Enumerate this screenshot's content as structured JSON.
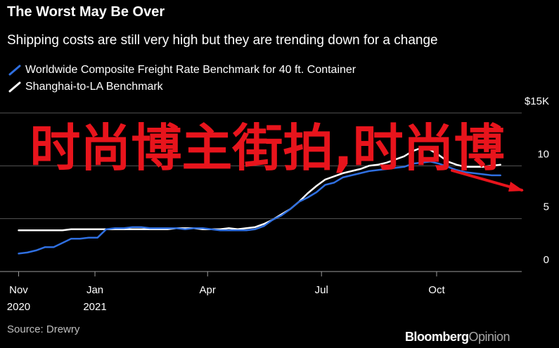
{
  "header": {
    "title": "The Worst May Be Over",
    "subtitle": "Shipping costs are still very high but they are trending down for a change"
  },
  "legend": [
    {
      "label": "Worldwide Composite Freight Rate Benchmark for 40 ft. Container",
      "color": "#2f6fe0"
    },
    {
      "label": "Shanghai-to-LA Benchmark",
      "color": "#ffffff"
    }
  ],
  "footer": {
    "source": "Source: Drewry",
    "brand_primary": "Bloomberg",
    "brand_secondary": "Opinion"
  },
  "overlay": {
    "text": "时尚博主街拍,时尚博"
  },
  "colors": {
    "background": "#000000",
    "grid": "#555555",
    "overlay_text": "#e8141c",
    "arrow": "#e8141c"
  },
  "chart_data": {
    "type": "line",
    "title": "The Worst May Be Over",
    "subtitle": "Shipping costs are still very high but they are trending down for a change",
    "y_unit_label": "$15K",
    "ylim": [
      0,
      15
    ],
    "yticks": [
      {
        "value": 15,
        "label": "$15K"
      },
      {
        "value": 10,
        "label": "10"
      },
      {
        "value": 5,
        "label": "5"
      },
      {
        "value": 0,
        "label": "0"
      }
    ],
    "xlim": [
      "2020-10-25",
      "2021-12-08"
    ],
    "xticks": [
      {
        "date": "2020-11-01",
        "label": [
          "Nov",
          "2020"
        ]
      },
      {
        "date": "2021-01-01",
        "label": [
          "Jan",
          "2021"
        ]
      },
      {
        "date": "2021-04-01",
        "label": [
          "Apr",
          ""
        ]
      },
      {
        "date": "2021-07-01",
        "label": [
          "Jul",
          ""
        ]
      },
      {
        "date": "2021-10-01",
        "label": [
          "Oct",
          ""
        ]
      }
    ],
    "grid": "horizontal",
    "legend_position": "top-left",
    "series": [
      {
        "name": "Worldwide Composite Freight Rate Benchmark for 40 ft. Container",
        "color": "#2f6fe0",
        "points": [
          [
            "2020-11-01",
            1.7
          ],
          [
            "2020-11-08",
            1.8
          ],
          [
            "2020-11-15",
            2.0
          ],
          [
            "2020-11-22",
            2.3
          ],
          [
            "2020-11-29",
            2.3
          ],
          [
            "2020-12-06",
            2.7
          ],
          [
            "2020-12-13",
            3.1
          ],
          [
            "2020-12-20",
            3.1
          ],
          [
            "2020-12-27",
            3.2
          ],
          [
            "2021-01-03",
            3.2
          ],
          [
            "2021-01-10",
            4.0
          ],
          [
            "2021-01-17",
            4.1
          ],
          [
            "2021-01-24",
            4.1
          ],
          [
            "2021-01-31",
            4.2
          ],
          [
            "2021-02-07",
            4.2
          ],
          [
            "2021-02-14",
            4.1
          ],
          [
            "2021-02-21",
            4.1
          ],
          [
            "2021-02-28",
            4.1
          ],
          [
            "2021-03-07",
            4.1
          ],
          [
            "2021-03-14",
            4.0
          ],
          [
            "2021-03-21",
            4.1
          ],
          [
            "2021-03-28",
            4.1
          ],
          [
            "2021-04-04",
            4.0
          ],
          [
            "2021-04-11",
            3.9
          ],
          [
            "2021-04-18",
            3.9
          ],
          [
            "2021-04-25",
            3.9
          ],
          [
            "2021-05-02",
            3.9
          ],
          [
            "2021-05-09",
            4.0
          ],
          [
            "2021-05-16",
            4.3
          ],
          [
            "2021-05-23",
            4.9
          ],
          [
            "2021-05-30",
            5.3
          ],
          [
            "2021-06-06",
            5.9
          ],
          [
            "2021-06-13",
            6.6
          ],
          [
            "2021-06-20",
            7.0
          ],
          [
            "2021-06-27",
            7.5
          ],
          [
            "2021-07-04",
            8.2
          ],
          [
            "2021-07-11",
            8.4
          ],
          [
            "2021-07-18",
            8.9
          ],
          [
            "2021-07-25",
            9.1
          ],
          [
            "2021-08-01",
            9.3
          ],
          [
            "2021-08-08",
            9.5
          ],
          [
            "2021-08-15",
            9.6
          ],
          [
            "2021-08-22",
            9.7
          ],
          [
            "2021-08-29",
            9.8
          ],
          [
            "2021-09-05",
            9.9
          ],
          [
            "2021-09-12",
            10.2
          ],
          [
            "2021-09-19",
            10.3
          ],
          [
            "2021-09-26",
            10.4
          ],
          [
            "2021-10-03",
            10.2
          ],
          [
            "2021-10-10",
            9.9
          ],
          [
            "2021-10-17",
            9.6
          ],
          [
            "2021-10-24",
            9.4
          ],
          [
            "2021-10-31",
            9.3
          ],
          [
            "2021-11-07",
            9.2
          ],
          [
            "2021-11-14",
            9.1
          ],
          [
            "2021-11-21",
            9.1
          ]
        ]
      },
      {
        "name": "Shanghai-to-LA Benchmark",
        "color": "#ffffff",
        "points": [
          [
            "2020-11-01",
            3.9
          ],
          [
            "2020-11-08",
            3.9
          ],
          [
            "2020-11-15",
            3.9
          ],
          [
            "2020-11-22",
            3.9
          ],
          [
            "2020-11-29",
            3.9
          ],
          [
            "2020-12-06",
            3.9
          ],
          [
            "2020-12-13",
            4.0
          ],
          [
            "2020-12-20",
            4.0
          ],
          [
            "2020-12-27",
            4.0
          ],
          [
            "2021-01-03",
            4.0
          ],
          [
            "2021-01-10",
            4.0
          ],
          [
            "2021-01-17",
            4.0
          ],
          [
            "2021-01-24",
            4.0
          ],
          [
            "2021-01-31",
            4.0
          ],
          [
            "2021-02-07",
            4.0
          ],
          [
            "2021-02-14",
            4.0
          ],
          [
            "2021-02-21",
            4.0
          ],
          [
            "2021-02-28",
            4.0
          ],
          [
            "2021-03-07",
            4.1
          ],
          [
            "2021-03-14",
            4.1
          ],
          [
            "2021-03-21",
            4.1
          ],
          [
            "2021-03-28",
            4.0
          ],
          [
            "2021-04-04",
            4.0
          ],
          [
            "2021-04-11",
            4.0
          ],
          [
            "2021-04-18",
            4.1
          ],
          [
            "2021-04-25",
            4.0
          ],
          [
            "2021-05-02",
            4.1
          ],
          [
            "2021-05-09",
            4.2
          ],
          [
            "2021-05-16",
            4.5
          ],
          [
            "2021-05-23",
            4.9
          ],
          [
            "2021-05-30",
            5.4
          ],
          [
            "2021-06-06",
            5.9
          ],
          [
            "2021-06-13",
            6.6
          ],
          [
            "2021-06-20",
            7.4
          ],
          [
            "2021-06-27",
            8.1
          ],
          [
            "2021-07-04",
            8.7
          ],
          [
            "2021-07-11",
            9.0
          ],
          [
            "2021-07-18",
            9.3
          ],
          [
            "2021-07-25",
            9.5
          ],
          [
            "2021-08-01",
            9.7
          ],
          [
            "2021-08-08",
            10.0
          ],
          [
            "2021-08-15",
            10.1
          ],
          [
            "2021-08-22",
            10.3
          ],
          [
            "2021-08-29",
            10.6
          ],
          [
            "2021-09-05",
            10.9
          ],
          [
            "2021-09-12",
            11.4
          ],
          [
            "2021-09-19",
            11.7
          ],
          [
            "2021-09-26",
            11.5
          ],
          [
            "2021-10-03",
            11.0
          ],
          [
            "2021-10-10",
            10.4
          ],
          [
            "2021-10-17",
            10.1
          ],
          [
            "2021-10-24",
            9.9
          ],
          [
            "2021-10-31",
            9.9
          ],
          [
            "2021-11-07",
            9.9
          ],
          [
            "2021-11-14",
            10.0
          ],
          [
            "2021-11-21",
            10.1
          ]
        ]
      }
    ]
  }
}
